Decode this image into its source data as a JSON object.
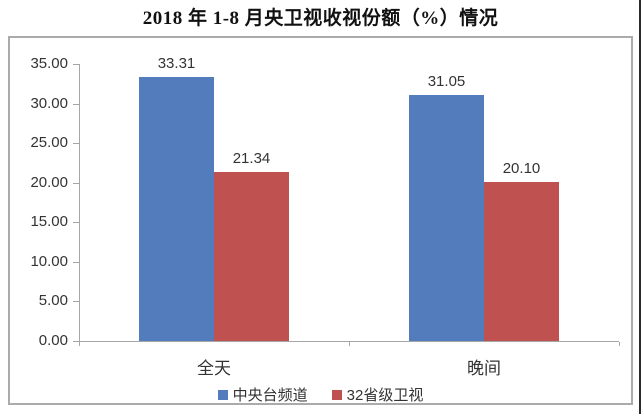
{
  "title": "2018 年 1-8 月央卫视收视份额（%）情况",
  "chart_data": {
    "type": "bar",
    "title": "2018 年 1-8 月央卫视收视份额（%）情况",
    "categories": [
      "全天",
      "晚间"
    ],
    "series": [
      {
        "name": "中央台频道",
        "color": "#527CBC",
        "values": [
          33.31,
          31.05
        ]
      },
      {
        "name": "32省级卫视",
        "color": "#BF5150",
        "values": [
          21.34,
          20.1
        ]
      }
    ],
    "value_labels": [
      [
        "33.31",
        "31.05"
      ],
      [
        "21.34",
        "20.10"
      ]
    ],
    "ylim": [
      0,
      35
    ],
    "ytick_step": 5,
    "ytick_labels": [
      "0.00",
      "5.00",
      "10.00",
      "15.00",
      "20.00",
      "25.00",
      "30.00",
      "35.00"
    ],
    "xlabel": "",
    "ylabel": "",
    "grid": false,
    "legend_position": "bottom",
    "axis_color": "#A6A6A6",
    "frame_border_color": "#ABABAB"
  }
}
